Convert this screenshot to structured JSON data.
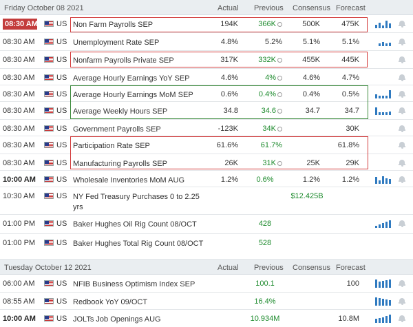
{
  "sections": [
    {
      "date": "Friday October 08 2021",
      "headers": {
        "actual": "Actual",
        "previous": "Previous",
        "consensus": "Consensus",
        "forecast": "Forecast"
      }
    },
    {
      "date": "Tuesday October 12 2021",
      "headers": {
        "actual": "Actual",
        "previous": "Previous",
        "consensus": "Consensus",
        "forecast": "Forecast"
      }
    }
  ],
  "rows": [
    {
      "time": "08:30 AM",
      "currency": "US",
      "event": "Non Farm Payrolls SEP",
      "actual": "194K",
      "previous": "366K",
      "consensus": "500K",
      "forecast": "475K"
    },
    {
      "time": "08:30 AM",
      "currency": "US",
      "event": "Unemployment Rate SEP",
      "actual": "4.8%",
      "previous": "5.2%",
      "consensus": "5.1%",
      "forecast": "5.1%"
    },
    {
      "time": "08:30 AM",
      "currency": "US",
      "event": "Nonfarm Payrolls Private SEP",
      "actual": "317K",
      "previous": "332K",
      "consensus": "455K",
      "forecast": "445K"
    },
    {
      "time": "08:30 AM",
      "currency": "US",
      "event": "Average Hourly Earnings YoY SEP",
      "actual": "4.6%",
      "previous": "4%",
      "consensus": "4.6%",
      "forecast": "4.7%"
    },
    {
      "time": "08:30 AM",
      "currency": "US",
      "event": "Average Hourly Earnings MoM SEP",
      "actual": "0.6%",
      "previous": "0.4%",
      "consensus": "0.4%",
      "forecast": "0.5%"
    },
    {
      "time": "08:30 AM",
      "currency": "US",
      "event": "Average Weekly Hours SEP",
      "actual": "34.8",
      "previous": "34.6",
      "consensus": "34.7",
      "forecast": "34.7"
    },
    {
      "time": "08:30 AM",
      "currency": "US",
      "event": "Government Payrolls SEP",
      "actual": "-123K",
      "previous": "34K",
      "consensus": "",
      "forecast": "30K"
    },
    {
      "time": "08:30 AM",
      "currency": "US",
      "event": "Participation Rate SEP",
      "actual": "61.6%",
      "previous": "61.7%",
      "consensus": "",
      "forecast": "61.8%"
    },
    {
      "time": "08:30 AM",
      "currency": "US",
      "event": "Manufacturing Payrolls SEP",
      "actual": "26K",
      "previous": "31K",
      "consensus": "25K",
      "forecast": "29K"
    },
    {
      "time": "10:00 AM",
      "currency": "US",
      "event": "Wholesale Inventories MoM AUG",
      "actual": "1.2%",
      "previous": "0.6%",
      "consensus": "1.2%",
      "forecast": "1.2%"
    },
    {
      "time": "10:30 AM",
      "currency": "US",
      "event": "NY Fed Treasury Purchases 0 to 2.25 yrs",
      "actual": "",
      "previous": "",
      "consensus": "$12.425B",
      "forecast": ""
    },
    {
      "time": "01:00 PM",
      "currency": "US",
      "event": "Baker Hughes Oil Rig Count 08/OCT",
      "actual": "",
      "previous": "428",
      "consensus": "",
      "forecast": ""
    },
    {
      "time": "01:00 PM",
      "currency": "US",
      "event": "Baker Hughes Total Rig Count 08/OCT",
      "actual": "",
      "previous": "528",
      "consensus": "",
      "forecast": ""
    },
    {
      "time": "06:00 AM",
      "currency": "US",
      "event": "NFIB Business Optimism Index SEP",
      "actual": "",
      "previous": "100.1",
      "consensus": "",
      "forecast": "100"
    },
    {
      "time": "08:55 AM",
      "currency": "US",
      "event": "Redbook YoY 09/OCT",
      "actual": "",
      "previous": "16.4%",
      "consensus": "",
      "forecast": ""
    },
    {
      "time": "10:00 AM",
      "currency": "US",
      "event": "JOLTs Job Openings AUG",
      "actual": "",
      "previous": "10.934M",
      "consensus": "",
      "forecast": "10.8M"
    }
  ]
}
